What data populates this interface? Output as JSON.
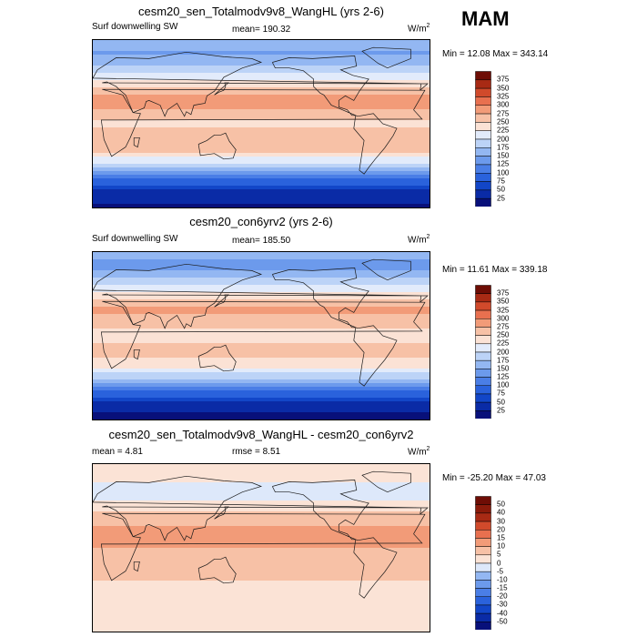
{
  "season": "MAM",
  "panels": [
    {
      "title": "cesm20_sen_Totalmodv9v8_WangHL (yrs 2-6)",
      "left_label": "Surf downwelling SW",
      "center_label": "mean= 190.32",
      "units": "W/m",
      "units_exp": "2",
      "minmax": "Min =  12.08 Max = 343.14",
      "colorbar_levels": [
        "375",
        "350",
        "325",
        "300",
        "275",
        "250",
        "225",
        "200",
        "175",
        "150",
        "125",
        "100",
        "75",
        "50",
        "25"
      ]
    },
    {
      "title": "cesm20_con6yrv2 (yrs 2-6)",
      "left_label": "Surf downwelling SW",
      "center_label": "mean= 185.50",
      "units": "W/m",
      "units_exp": "2",
      "minmax": "Min =  11.61 Max = 339.18",
      "colorbar_levels": [
        "375",
        "350",
        "325",
        "300",
        "275",
        "250",
        "225",
        "200",
        "175",
        "150",
        "125",
        "100",
        "75",
        "50",
        "25"
      ]
    },
    {
      "title": "cesm20_sen_Totalmodv9v8_WangHL - cesm20_con6yrv2",
      "left_label": "mean =   4.81",
      "center_label": "rmse =   8.51",
      "units": "W/m",
      "units_exp": "2",
      "minmax": "Min = -25.20 Max =  47.03",
      "colorbar_levels": [
        "50",
        "40",
        "30",
        "20",
        "15",
        "10",
        "5",
        "0",
        "-5",
        "-10",
        "-15",
        "-20",
        "-30",
        "-40",
        "-50"
      ]
    }
  ],
  "chart_data": [
    {
      "type": "heatmap",
      "title": "cesm20_sen_Totalmodv9v8_WangHL (yrs 2-6)",
      "variable": "Surf downwelling SW",
      "units": "W/m2",
      "mean": 190.32,
      "min": 12.08,
      "max": 343.14,
      "colorbar_levels": [
        25,
        50,
        75,
        100,
        125,
        150,
        175,
        200,
        225,
        250,
        275,
        300,
        325,
        350,
        375
      ],
      "colors": [
        "#08107a",
        "#0a2ba6",
        "#1246c8",
        "#2a62dc",
        "#4a7ee6",
        "#6c9aec",
        "#93b7f2",
        "#bcd3f7",
        "#e2ebfb",
        "#fbe2d5",
        "#f7c1a6",
        "#f29b78",
        "#e8704f",
        "#d14a2b",
        "#a82a14",
        "#6e0d05"
      ],
      "zonal_profile": {
        "lat": [
          90,
          75,
          60,
          45,
          30,
          15,
          0,
          -15,
          -30,
          -45,
          -60,
          -75,
          -90
        ],
        "value": [
          170,
          145,
          185,
          230,
          285,
          275,
          245,
          265,
          250,
          185,
          100,
          35,
          20
        ]
      }
    },
    {
      "type": "heatmap",
      "title": "cesm20_con6yrv2 (yrs 2-6)",
      "variable": "Surf downwelling SW",
      "units": "W/m2",
      "mean": 185.5,
      "min": 11.61,
      "max": 339.18,
      "colorbar_levels": [
        25,
        50,
        75,
        100,
        125,
        150,
        175,
        200,
        225,
        250,
        275,
        300,
        325,
        350,
        375
      ],
      "colors": [
        "#08107a",
        "#0a2ba6",
        "#1246c8",
        "#2a62dc",
        "#4a7ee6",
        "#6c9aec",
        "#93b7f2",
        "#bcd3f7",
        "#e2ebfb",
        "#fbe2d5",
        "#f7c1a6",
        "#f29b78",
        "#e8704f",
        "#d14a2b",
        "#a82a14",
        "#6e0d05"
      ],
      "zonal_profile": {
        "lat": [
          90,
          75,
          60,
          45,
          30,
          15,
          0,
          -15,
          -30,
          -45,
          -60,
          -75,
          -90
        ],
        "value": [
          165,
          140,
          180,
          225,
          280,
          268,
          238,
          258,
          245,
          180,
          95,
          33,
          18
        ]
      }
    },
    {
      "type": "heatmap",
      "title": "cesm20_sen_Totalmodv9v8_WangHL - cesm20_con6yrv2",
      "units": "W/m2",
      "mean": 4.81,
      "rmse": 8.51,
      "min": -25.2,
      "max": 47.03,
      "colorbar_levels": [
        -50,
        -40,
        -30,
        -20,
        -15,
        -10,
        -5,
        0,
        5,
        10,
        15,
        20,
        30,
        40,
        50
      ],
      "colors": [
        "#08107a",
        "#0a2ba6",
        "#1246c8",
        "#2a62dc",
        "#4a7ee6",
        "#6c9aec",
        "#93b7f2",
        "#dde8fa",
        "#fbe3d6",
        "#f7c1a6",
        "#f29b78",
        "#e8704f",
        "#d14a2b",
        "#a82a14",
        "#8a1a0a",
        "#6e0d05"
      ],
      "zonal_profile": {
        "lat": [
          90,
          75,
          60,
          45,
          30,
          15,
          0,
          -15,
          -30,
          -45,
          -60,
          -75,
          -90
        ],
        "value": [
          0,
          2,
          -5,
          3,
          8,
          12,
          10,
          8,
          6,
          3,
          2,
          1,
          0
        ]
      }
    }
  ]
}
